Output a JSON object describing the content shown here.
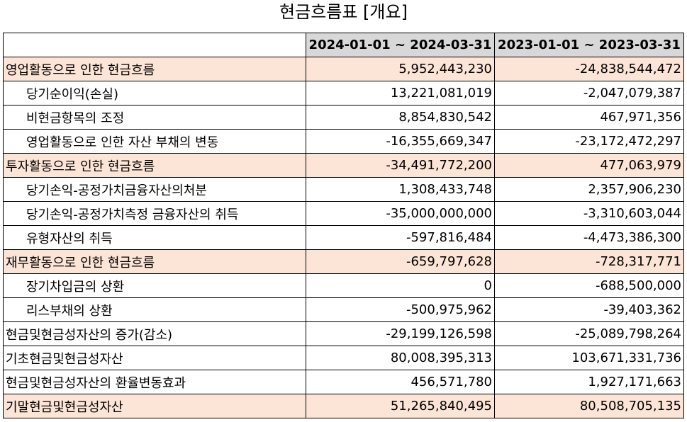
{
  "title": "현금흐름표 [개요]",
  "columns": [
    "2024-01-01 ~ 2024-03-31",
    "2023-01-01 ~ 2023-03-31"
  ],
  "rows": [
    {
      "label": "영업활동으로 인한 현금흐름",
      "v1": "5,952,443,230",
      "v2": "-24,838,544,472",
      "highlight": true,
      "indent": false
    },
    {
      "label": "당기순이익(손실)",
      "v1": "13,221,081,019",
      "v2": "-2,047,079,387",
      "highlight": false,
      "indent": true
    },
    {
      "label": "비현금항목의 조정",
      "v1": "8,854,830,542",
      "v2": "467,971,356",
      "highlight": false,
      "indent": true
    },
    {
      "label": "영업활동으로 인한 자산 부채의 변동",
      "v1": "-16,355,669,347",
      "v2": "-23,172,472,297",
      "highlight": false,
      "indent": true
    },
    {
      "label": "투자활동으로 인한 현금흐름",
      "v1": "-34,491,772,200",
      "v2": "477,063,979",
      "highlight": true,
      "indent": false
    },
    {
      "label": "당기손익-공정가치금융자산의처분",
      "v1": "1,308,433,748",
      "v2": "2,357,906,230",
      "highlight": false,
      "indent": true
    },
    {
      "label": "당기손익-공정가치측정 금융자산의 취득",
      "v1": "-35,000,000,000",
      "v2": "-3,310,603,044",
      "highlight": false,
      "indent": true
    },
    {
      "label": "유형자산의 취득",
      "v1": "-597,816,484",
      "v2": "-4,473,386,300",
      "highlight": false,
      "indent": true
    },
    {
      "label": "재무활동으로 인한 현금흐름",
      "v1": "-659,797,628",
      "v2": "-728,317,771",
      "highlight": true,
      "indent": false
    },
    {
      "label": "장기차입금의 상환",
      "v1": "0",
      "v2": "-688,500,000",
      "highlight": false,
      "indent": true
    },
    {
      "label": "리스부채의 상환",
      "v1": "-500,975,962",
      "v2": "-39,403,362",
      "highlight": false,
      "indent": true
    },
    {
      "label": "현금및현금성자산의 증가(감소)",
      "v1": "-29,199,126,598",
      "v2": "-25,089,798,264",
      "highlight": false,
      "indent": false
    },
    {
      "label": "기초현금및현금성자산",
      "v1": "80,008,395,313",
      "v2": "103,671,331,736",
      "highlight": false,
      "indent": false
    },
    {
      "label": "현금및현금성자산의 환율변동효과",
      "v1": "456,571,780",
      "v2": "1,927,171,663",
      "highlight": false,
      "indent": false
    },
    {
      "label": "기말현금및현금성자산",
      "v1": "51,265,840,495",
      "v2": "80,508,705,135",
      "highlight": true,
      "indent": false
    }
  ]
}
